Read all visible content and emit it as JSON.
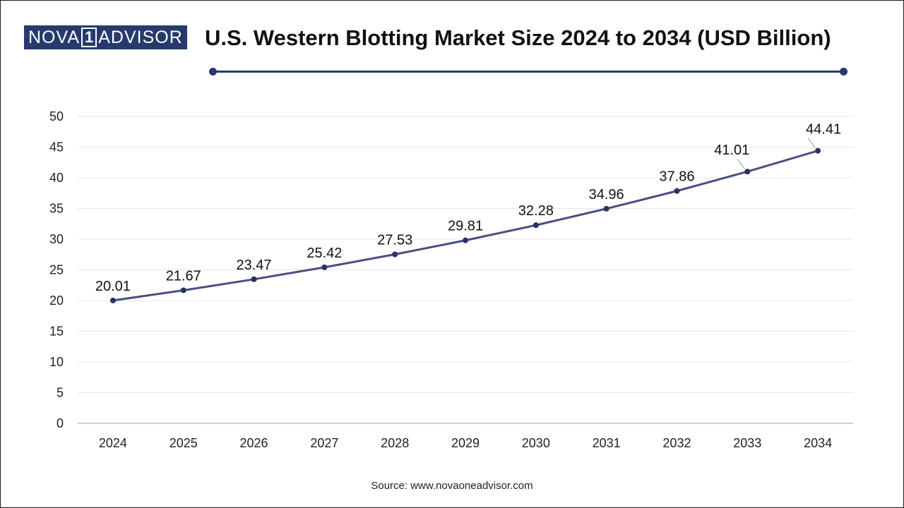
{
  "logo": {
    "part1": "NOVA",
    "part2": "1",
    "part3": "ADVISOR"
  },
  "title": "U.S. Western Blotting Market Size 2024 to 2034 (USD Billion)",
  "source": "Source: www.novaoneadvisor.com",
  "chart_data": {
    "type": "line",
    "title": "U.S. Western Blotting Market Size 2024 to 2034 (USD Billion)",
    "xlabel": "",
    "ylabel": "",
    "categories": [
      "2024",
      "2025",
      "2026",
      "2027",
      "2028",
      "2029",
      "2030",
      "2031",
      "2032",
      "2033",
      "2034"
    ],
    "values": [
      20.01,
      21.67,
      23.47,
      25.42,
      27.53,
      29.81,
      32.28,
      34.96,
      37.86,
      41.01,
      44.41
    ],
    "data_labels": [
      "20.01",
      "21.67",
      "23.47",
      "25.42",
      "27.53",
      "29.81",
      "32.28",
      "34.96",
      "37.86",
      "41.01",
      "44.41"
    ],
    "ylim": [
      0,
      50
    ],
    "yticks": [
      0,
      5,
      10,
      15,
      20,
      25,
      30,
      35,
      40,
      45,
      50
    ],
    "grid": true,
    "legend": "none",
    "colors": {
      "line": "#4a4e84",
      "marker": "#2b3163",
      "grid": "#e6e6e6",
      "axis": "#bfbfbf"
    }
  }
}
